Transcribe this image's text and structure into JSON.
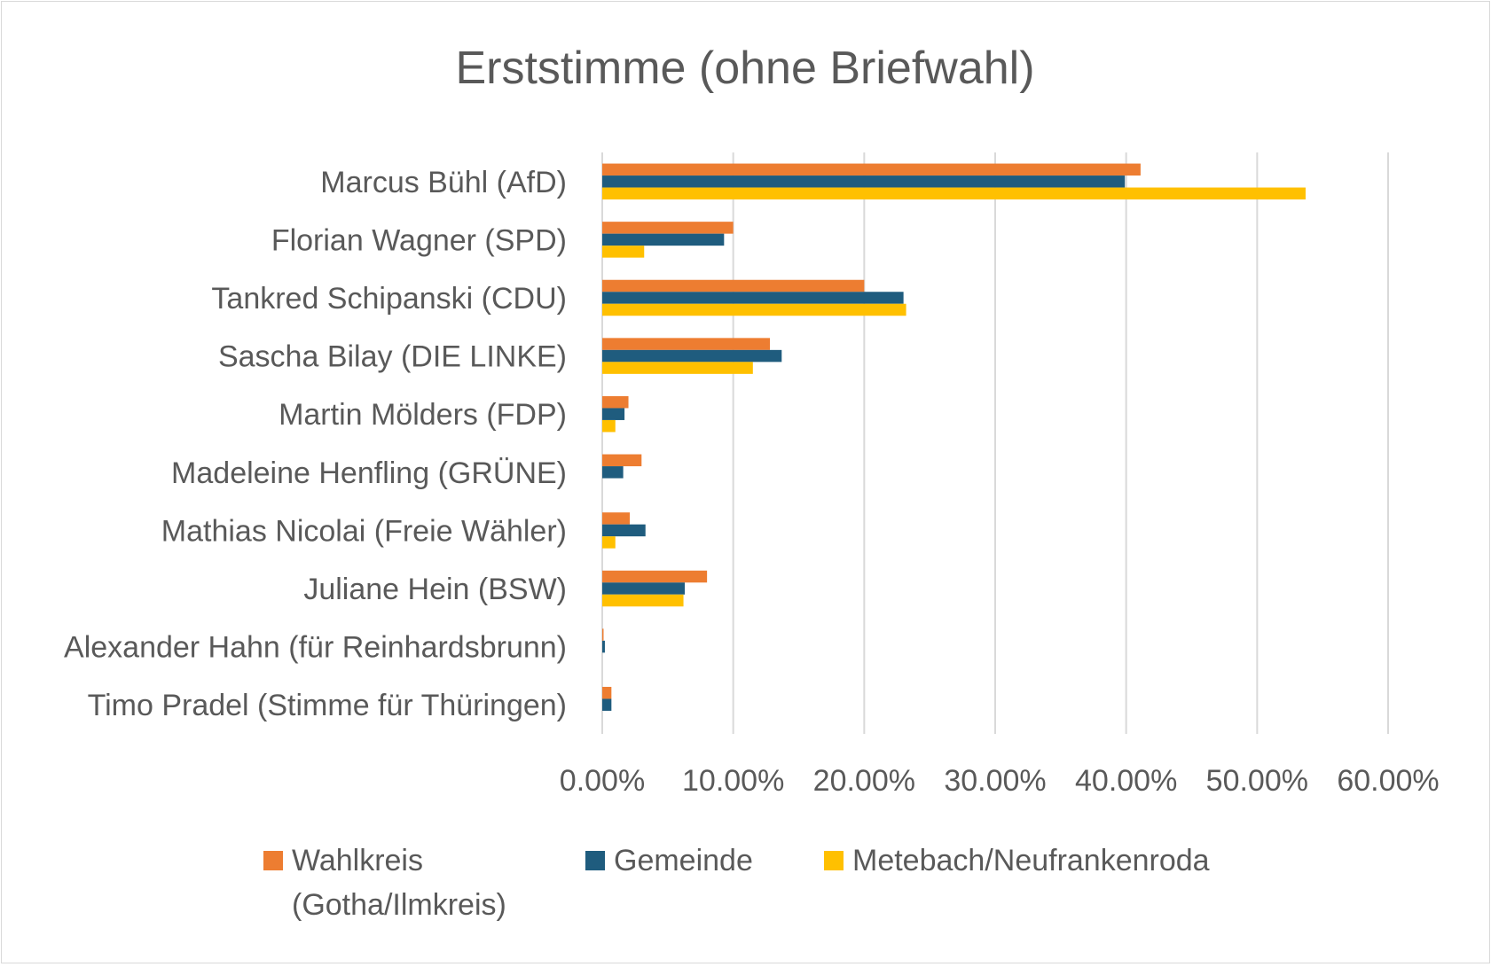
{
  "chart_data": {
    "type": "bar",
    "orientation": "horizontal",
    "title": "Erststimme (ohne Briefwahl)",
    "xlabel": "",
    "ylabel": "",
    "xlim": [
      0,
      0.6
    ],
    "x_ticks": [
      0,
      0.1,
      0.2,
      0.3,
      0.4,
      0.5,
      0.6
    ],
    "x_tick_labels": [
      "0.00%",
      "10.00%",
      "20.00%",
      "30.00%",
      "40.00%",
      "50.00%",
      "60.00%"
    ],
    "grid": "vertical",
    "legend_position": "bottom",
    "categories": [
      "Marcus Bühl (AfD)",
      "Florian Wagner (SPD)",
      "Tankred Schipanski (CDU)",
      "Sascha Bilay (DIE LINKE)",
      "Martin Mölders (FDP)",
      "Madeleine Henfling (GRÜNE)",
      "Mathias Nicolai (Freie Wähler)",
      "Juliane Hein (BSW)",
      "Alexander Hahn (für Reinhardsbrunn)",
      "Timo Pradel (Stimme für Thüringen)"
    ],
    "series": [
      {
        "name": "Wahlkreis (Gotha/Ilmkreis)",
        "legend_lines": [
          "Wahlkreis",
          "(Gotha/Ilmkreis)"
        ],
        "color": "#ED7D31",
        "values": [
          0.411,
          0.1,
          0.2,
          0.128,
          0.02,
          0.03,
          0.021,
          0.08,
          0.001,
          0.007
        ]
      },
      {
        "name": "Gemeinde",
        "legend_lines": [
          "Gemeinde"
        ],
        "color": "#1F5C7E",
        "values": [
          0.399,
          0.093,
          0.23,
          0.137,
          0.017,
          0.016,
          0.033,
          0.063,
          0.002,
          0.007
        ]
      },
      {
        "name": "Metebach/Neufrankenroda",
        "legend_lines": [
          "Metebach/Neufrankenroda"
        ],
        "color": "#FFC000",
        "values": [
          0.537,
          0.032,
          0.232,
          0.115,
          0.01,
          0,
          0.01,
          0.062,
          0,
          0
        ]
      }
    ]
  }
}
